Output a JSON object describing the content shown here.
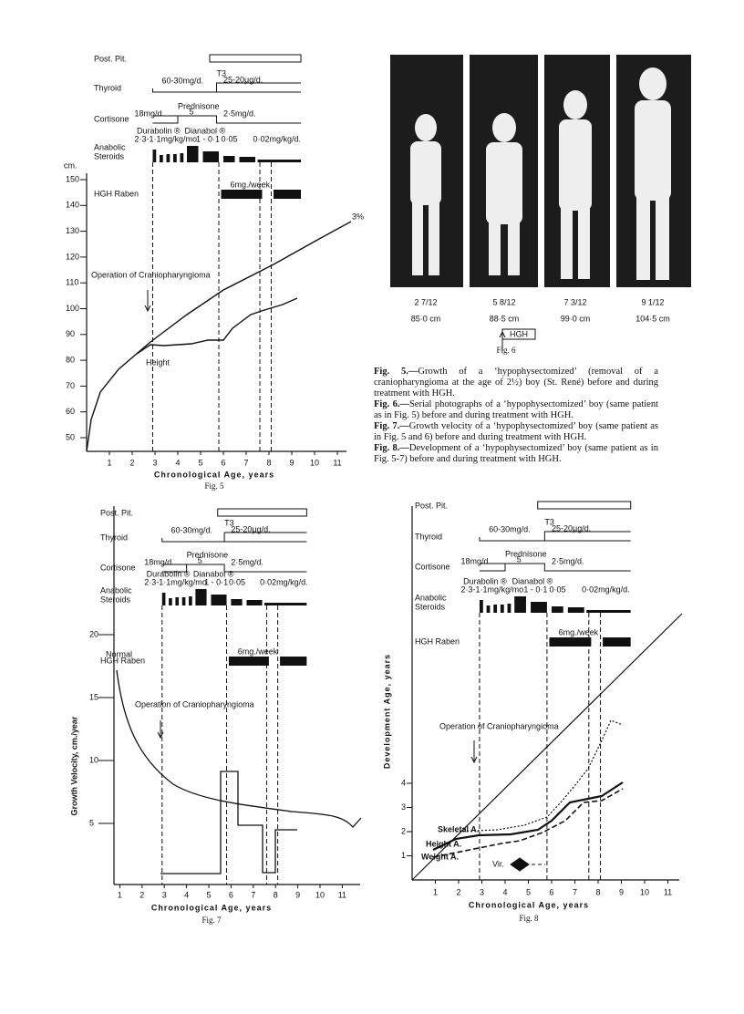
{
  "figure5": {
    "rows": [
      "Post. Pit.",
      "Thyroid",
      "Cortisone",
      "Anabolic",
      "Steroids",
      "HGH Raben"
    ],
    "notes": {
      "thyroid_dose": "60-30mg/d.",
      "t3": "T3",
      "t3_dose": "25-20μg/d.",
      "prednisone": "Prednisone",
      "cort_dose1": "18mg/d.",
      "cort_5": "5",
      "cort_dose2": "2·5mg/d.",
      "durabolin": "Durabolin ®",
      "dianabol": "Dianabol ®",
      "ster_dose1": "2·3-1·1mg/kg/mo",
      "ster_dose2": "1 - 0·1",
      "ster_dose3": "0·05",
      "ster_dose4": "0·02mg/kg/d.",
      "hgh_dose": "6mg./week"
    },
    "operation": "Operation of Craniopharyngioma",
    "height": "Height",
    "percentile": "3%",
    "y_unit": "cm.",
    "yticks": [
      150,
      140,
      130,
      120,
      110,
      100,
      90,
      80,
      70,
      60,
      50
    ],
    "xticks": [
      1,
      2,
      3,
      4,
      5,
      6,
      7,
      8,
      9,
      10,
      11
    ],
    "xlabel": "Chronological Age, years",
    "label": "Fig. 5"
  },
  "figure6": {
    "ages": [
      "2 7/12",
      "5 8/12",
      "7 3/12",
      "9 1/12"
    ],
    "heights": [
      "85·0 cm",
      "88·5 cm",
      "99·0 cm",
      "104·5 cm"
    ],
    "hgh": "HGH",
    "label": "Fig. 6"
  },
  "captions": [
    {
      "lead": "Fig. 5.—",
      "text": "Growth of a ‘hypophysectomized’ (removal of a craniopharyngioma at the age of 2½) boy (St. René) before and during treatment with HGH."
    },
    {
      "lead": "Fig. 6.—",
      "text": "Serial photographs of a ‘hypophysectomized’ boy (same patient as in Fig. 5) before and during treatment with HGH."
    },
    {
      "lead": "Fig. 7.—",
      "text": "Growth velocity of a ‘hypophysectomized’ boy (same patient as in Fig. 5 and 6) before and during treatment with HGH."
    },
    {
      "lead": "Fig. 8.—",
      "text": "Development of a ‘hypophysectomized’ boy (same patient as in Fig. 5-7) before and during treatment with HGH."
    }
  ],
  "figure7": {
    "rows": [
      "Post. Pit.",
      "Thyroid",
      "Cortisone",
      "Anabolic",
      "Steroids",
      "HGH Raben"
    ],
    "notes": {
      "thyroid_dose": "60-30mg/d.",
      "t3": "T3",
      "t3_dose": "25-20μg/d.",
      "prednisone": "Prednisone",
      "cort_dose1": "18mg/d.",
      "cort_5": "5",
      "cort_dose2": "2·5mg/d.",
      "durabolin": "Durabolin ®",
      "dianabol": "Dianabol ®",
      "ster_dose1": "2·3-1·1mg/kg/mo",
      "ster_dose2": "1 - 0·1",
      "ster_dose3": "0·05",
      "ster_dose4": "0·02mg/kg/d.",
      "hgh_dose": "6mg./week"
    },
    "operation": "Operation of Craniopharyngioma",
    "normal": "Normal",
    "ylabel": "Growth Velocity, cm./year",
    "yticks": [
      20,
      15,
      10,
      5
    ],
    "xticks": [
      1,
      2,
      3,
      4,
      5,
      6,
      7,
      8,
      9,
      10,
      11
    ],
    "xlabel": "Chronological Age, years",
    "label": "Fig. 7"
  },
  "figure8": {
    "rows": [
      "Post. Pit.",
      "Thyroid",
      "Cortisone",
      "Anabolic",
      "Steroids",
      "HGH Raben"
    ],
    "notes": {
      "thyroid_dose": "60-30mg/d.",
      "t3": "T3",
      "t3_dose": "25-20μg/d.",
      "prednisone": "Prednisone",
      "cort_dose1": "18mg/d.",
      "cort_5": "5",
      "cort_dose2": "2·5mg/d.",
      "durabolin": "Durabolin ®",
      "dianabol": "Dianabol ®",
      "ster_dose1": "2·3-1·1mg/kg/mo",
      "ster_dose2": "1 - 0·1",
      "ster_dose3": "0·05",
      "ster_dose4": "0·02mg/kg/d.",
      "hgh_dose": "6mg./week"
    },
    "operation": "Operation of Craniopharyngioma",
    "skeletal": "Skeletal A.",
    "height": "Height A.",
    "weight": "Weight A.",
    "vir": "Vir.",
    "ylabel": "Development Age, years",
    "yticks": [
      4,
      3,
      2,
      1
    ],
    "xticks": [
      1,
      2,
      3,
      4,
      5,
      6,
      7,
      8,
      9,
      10,
      11
    ],
    "xlabel": "Chronological Age, years",
    "label": "Fig. 8"
  }
}
